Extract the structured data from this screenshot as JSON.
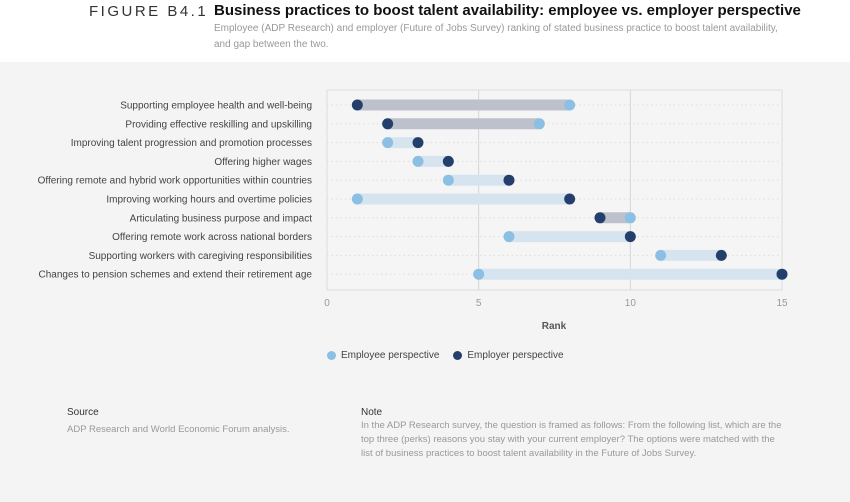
{
  "header": {
    "figure_label": "FIGURE B4.1",
    "title": "Business practices to boost talent availability: employee vs. employer perspective",
    "subtitle": "Employee (ADP Research) and employer (Future of Jobs Survey) ranking of stated business practice to boost talent availability, and gap between the two."
  },
  "chart_data": {
    "type": "dumbbell",
    "xlabel": "Rank",
    "xlim": [
      0,
      15
    ],
    "xticks": [
      0,
      5,
      10,
      15
    ],
    "grid": true,
    "legend_position": "bottom-left",
    "categories": [
      "Supporting employee health and well-being",
      "Providing effective reskilling and upskilling",
      "Improving talent progression and promotion processes",
      "Offering higher wages",
      "Offering remote and hybrid work opportunities within countries",
      "Improving working hours and overtime policies",
      "Articulating business purpose and impact",
      "Offering remote work across national borders",
      "Supporting workers with caregiving responsibilities",
      "Changes to pension schemes and extend their retirement age"
    ],
    "series": [
      {
        "name": "Employee perspective",
        "color": "#8bbfe3",
        "values": [
          8,
          7,
          2,
          3,
          4,
          1,
          10,
          6,
          11,
          5
        ]
      },
      {
        "name": "Employer perspective",
        "color": "#243f6b",
        "values": [
          1,
          2,
          3,
          4,
          6,
          8,
          9,
          10,
          13,
          15
        ]
      }
    ],
    "bar_colors": {
      "employer_higher": "#bcc1cc",
      "employee_higher": "#d6e4ef"
    }
  },
  "footer": {
    "source_heading": "Source",
    "source_text": "ADP Research and World Economic Forum analysis.",
    "note_heading": "Note",
    "note_text": "In the ADP Research survey, the question is framed as follows: From the following list, which are the top three (perks) reasons you stay with your current employer? The options were matched with the list of business practices to boost talent availability in the Future of Jobs Survey."
  }
}
